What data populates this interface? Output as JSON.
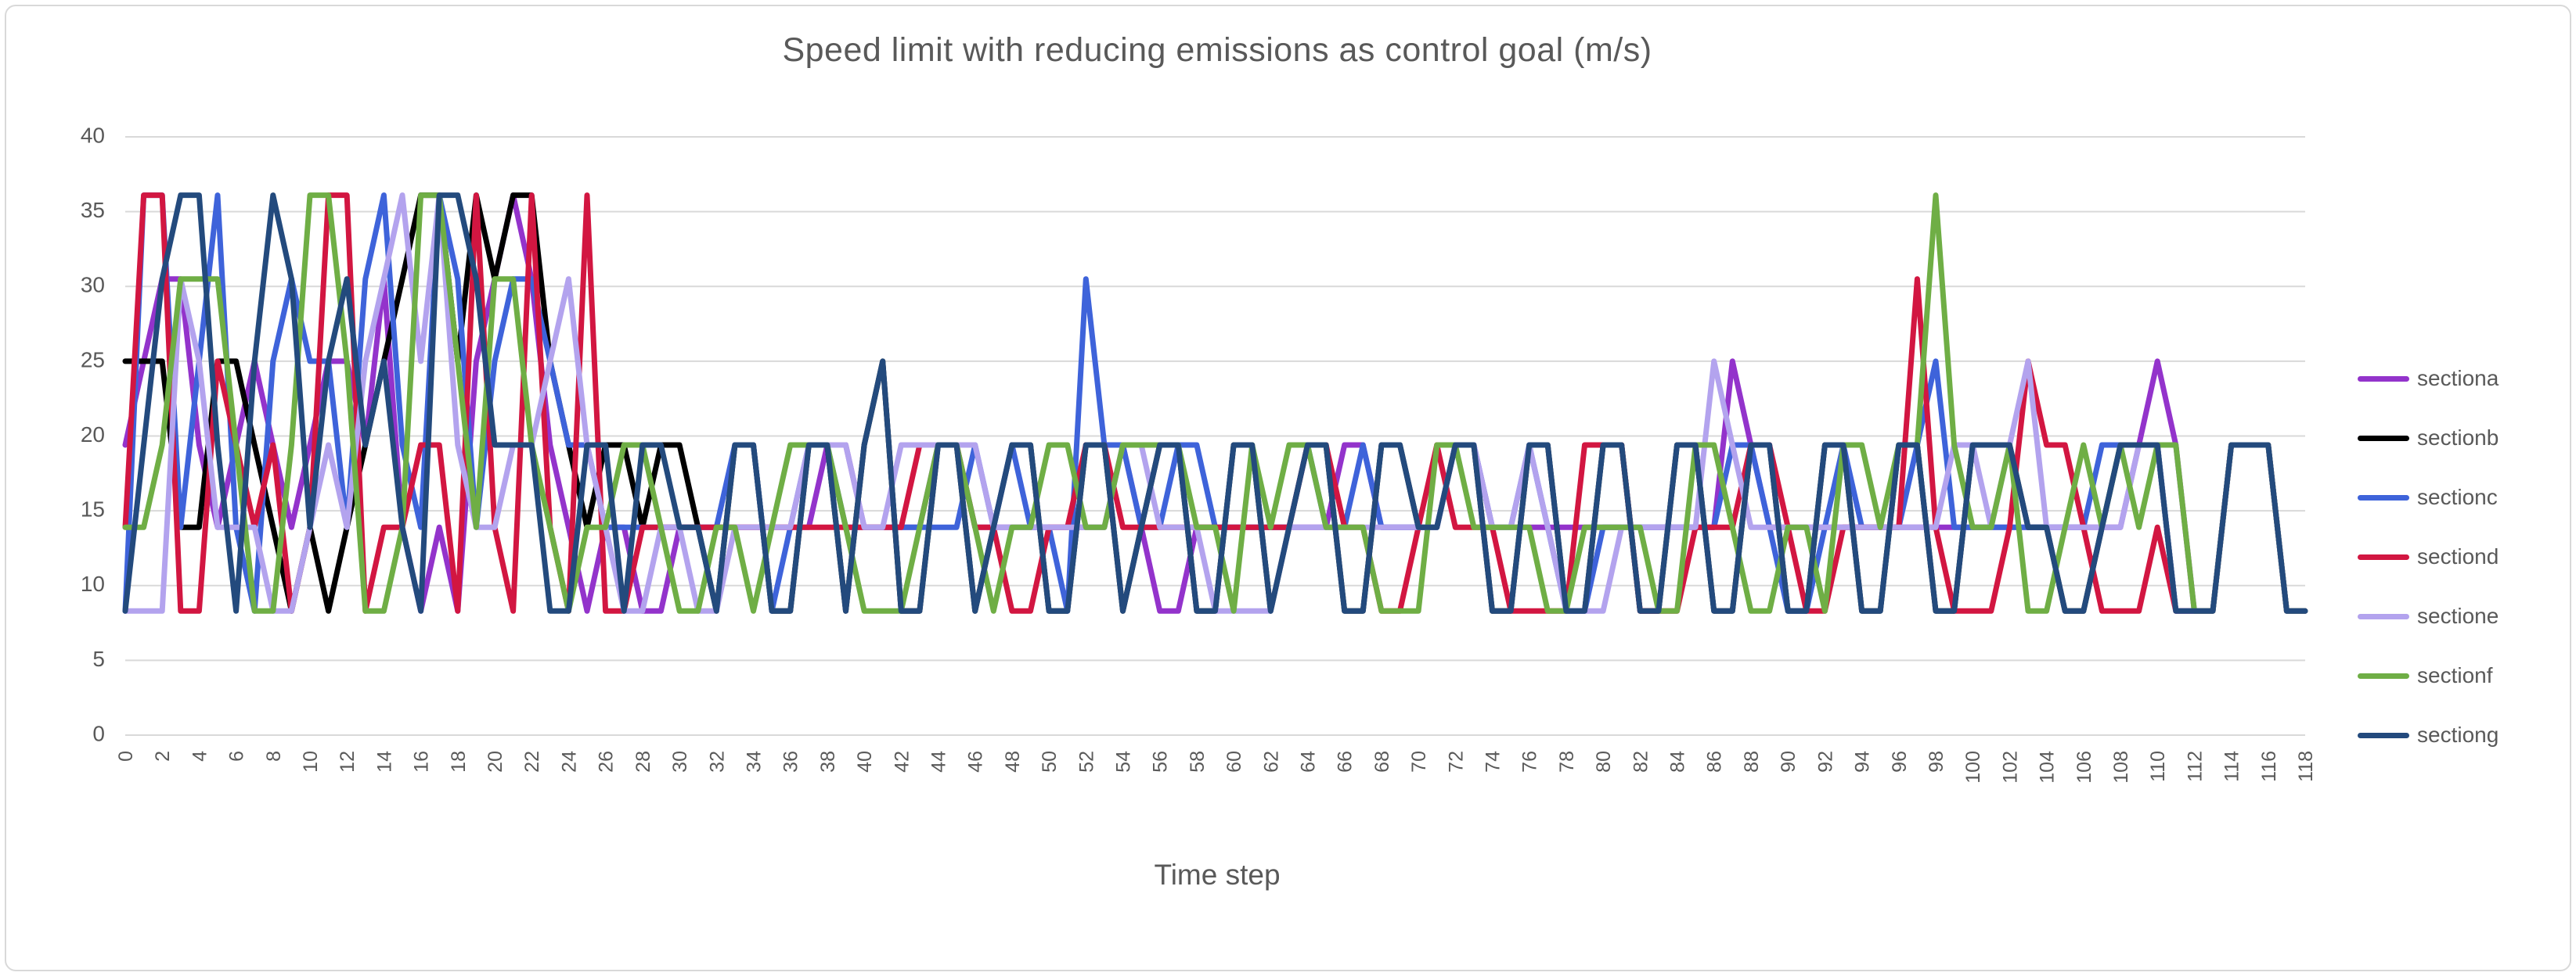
{
  "title": "Speed limit with reducing emissions as control goal (m/s)",
  "x_axis_title": "Time step",
  "colors": {
    "grid": "#d9d9d9",
    "axis_text": "#595959",
    "frame_border": "#d9d9d9",
    "background": "#ffffff"
  },
  "chart_data": {
    "type": "line",
    "title": "Speed limit with reducing emissions as control goal (m/s)",
    "xlabel": "Time step",
    "ylabel": "",
    "ylim": [
      0,
      40
    ],
    "grid": true,
    "legend_position": "right",
    "y_ticks": [
      0,
      5,
      10,
      15,
      20,
      25,
      30,
      35,
      40
    ],
    "x_ticks": [
      0,
      2,
      4,
      6,
      8,
      10,
      12,
      14,
      16,
      18,
      20,
      22,
      24,
      26,
      28,
      30,
      32,
      34,
      36,
      38,
      40,
      42,
      44,
      46,
      48,
      50,
      52,
      54,
      56,
      58,
      60,
      62,
      64,
      66,
      68,
      70,
      72,
      74,
      76,
      78,
      80,
      82,
      84,
      86,
      88,
      90,
      92,
      94,
      96,
      98,
      100,
      102,
      104,
      106,
      108,
      110,
      112,
      114,
      116,
      118
    ],
    "x_start": 0,
    "x_end": 118,
    "series": [
      {
        "name": "sectiona",
        "color": "#9333cb",
        "values": [
          19.4,
          25,
          30.5,
          30.5,
          19.4,
          13.9,
          19.4,
          25,
          19.4,
          13.9,
          19.4,
          25,
          25,
          19.4,
          30.5,
          13.9,
          8.3,
          13.9,
          8.3,
          25,
          30.5,
          36.1,
          30.5,
          19.4,
          13.9,
          8.3,
          13.9,
          13.9,
          8.3,
          8.3,
          13.9,
          13.9,
          13.9,
          13.9,
          13.9,
          13.9,
          13.9,
          13.9,
          19.4,
          19.4,
          13.9,
          13.9,
          13.9,
          13.9,
          19.4,
          19.4,
          13.9,
          13.9,
          13.9,
          13.9,
          13.9,
          13.9,
          13.9,
          13.9,
          19.4,
          13.9,
          8.3,
          8.3,
          13.9,
          13.9,
          13.9,
          13.9,
          13.9,
          13.9,
          13.9,
          13.9,
          19.4,
          19.4,
          13.9,
          13.9,
          13.9,
          13.9,
          19.4,
          19.4,
          13.9,
          13.9,
          13.9,
          13.9,
          13.9,
          13.9,
          13.9,
          13.9,
          13.9,
          13.9,
          13.9,
          13.9,
          13.9,
          25,
          19.4,
          13.9,
          13.9,
          13.9,
          13.9,
          13.9,
          13.9,
          13.9,
          13.9,
          13.9,
          13.9,
          13.9,
          13.9,
          13.9,
          13.9,
          13.9,
          13.9,
          13.9,
          13.9,
          13.9,
          13.9,
          19.4,
          25,
          19.4,
          8.3,
          8.3,
          19.4,
          19.4,
          19.4,
          8.3,
          8.3
        ]
      },
      {
        "name": "sectionb",
        "color": "#000000",
        "values": [
          25,
          25,
          25,
          13.9,
          13.9,
          25,
          25,
          19.4,
          13.9,
          8.3,
          13.9,
          8.3,
          13.9,
          19.4,
          25,
          30.5,
          36.1,
          36.1,
          25,
          36.1,
          30.5,
          36.1,
          36.1,
          25,
          19.4,
          13.9,
          19.4,
          19.4,
          13.9,
          19.4,
          19.4,
          13.9,
          8.3,
          19.4,
          19.4,
          8.3,
          8.3,
          19.4,
          19.4,
          8.3,
          19.4,
          25,
          8.3,
          8.3,
          19.4,
          19.4,
          8.3,
          13.9,
          19.4,
          19.4,
          8.3,
          8.3,
          19.4,
          19.4,
          8.3,
          13.9,
          19.4,
          19.4,
          8.3,
          8.3,
          19.4,
          19.4,
          8.3,
          13.9,
          19.4,
          19.4,
          8.3,
          8.3,
          19.4,
          19.4,
          13.9,
          13.9,
          19.4,
          19.4,
          8.3,
          8.3,
          19.4,
          19.4,
          8.3,
          8.3,
          19.4,
          19.4,
          8.3,
          8.3,
          19.4,
          19.4,
          8.3,
          8.3,
          19.4,
          19.4,
          8.3,
          8.3,
          19.4,
          19.4,
          8.3,
          8.3,
          19.4,
          19.4,
          8.3,
          8.3,
          19.4,
          19.4,
          19.4,
          13.9,
          13.9,
          8.3,
          8.3,
          13.9,
          19.4,
          19.4,
          19.4,
          8.3,
          8.3,
          8.3,
          19.4,
          19.4,
          19.4,
          8.3,
          8.3
        ]
      },
      {
        "name": "sectionc",
        "color": "#3e63da",
        "values": [
          8.3,
          36.1,
          36.1,
          13.9,
          25,
          36.1,
          13.9,
          8.3,
          25,
          30.5,
          25,
          25,
          13.9,
          30.5,
          36.1,
          19.4,
          13.9,
          36.1,
          30.5,
          13.9,
          25,
          30.5,
          30.5,
          25,
          19.4,
          19.4,
          13.9,
          13.9,
          13.9,
          13.9,
          13.9,
          13.9,
          13.9,
          19.4,
          19.4,
          8.3,
          13.9,
          19.4,
          19.4,
          13.9,
          13.9,
          13.9,
          13.9,
          13.9,
          13.9,
          13.9,
          19.4,
          13.9,
          19.4,
          13.9,
          13.9,
          8.3,
          30.5,
          19.4,
          19.4,
          13.9,
          13.9,
          19.4,
          19.4,
          13.9,
          13.9,
          13.9,
          13.9,
          13.9,
          19.4,
          13.9,
          13.9,
          19.4,
          13.9,
          13.9,
          13.9,
          13.9,
          19.4,
          19.4,
          13.9,
          13.9,
          19.4,
          13.9,
          8.3,
          8.3,
          13.9,
          13.9,
          13.9,
          13.9,
          13.9,
          13.9,
          13.9,
          19.4,
          19.4,
          13.9,
          8.3,
          8.3,
          13.9,
          19.4,
          13.9,
          13.9,
          13.9,
          19.4,
          25,
          13.9,
          13.9,
          13.9,
          13.9,
          13.9,
          13.9,
          13.9,
          13.9,
          19.4,
          19.4,
          19.4,
          19.4,
          8.3,
          8.3,
          8.3,
          19.4,
          19.4,
          19.4,
          8.3,
          8.3
        ]
      },
      {
        "name": "sectiond",
        "color": "#d21641",
        "values": [
          13.9,
          36.1,
          36.1,
          8.3,
          8.3,
          25,
          19.4,
          13.9,
          19.4,
          8.3,
          13.9,
          36.1,
          36.1,
          8.3,
          13.9,
          13.9,
          19.4,
          19.4,
          8.3,
          36.1,
          13.9,
          8.3,
          36.1,
          13.9,
          8.3,
          36.1,
          8.3,
          8.3,
          13.9,
          13.9,
          13.9,
          13.9,
          13.9,
          13.9,
          13.9,
          13.9,
          13.9,
          13.9,
          13.9,
          13.9,
          13.9,
          13.9,
          13.9,
          19.4,
          19.4,
          19.4,
          13.9,
          13.9,
          8.3,
          8.3,
          13.9,
          13.9,
          19.4,
          19.4,
          13.9,
          13.9,
          13.9,
          13.9,
          13.9,
          13.9,
          13.9,
          13.9,
          13.9,
          13.9,
          19.4,
          19.4,
          13.9,
          13.9,
          8.3,
          8.3,
          13.9,
          19.4,
          13.9,
          13.9,
          13.9,
          8.3,
          8.3,
          8.3,
          8.3,
          19.4,
          19.4,
          19.4,
          8.3,
          8.3,
          8.3,
          13.9,
          13.9,
          13.9,
          19.4,
          19.4,
          13.9,
          8.3,
          8.3,
          13.9,
          13.9,
          13.9,
          13.9,
          30.5,
          13.9,
          8.3,
          8.3,
          8.3,
          13.9,
          25,
          19.4,
          19.4,
          13.9,
          8.3,
          8.3,
          8.3,
          13.9,
          8.3,
          8.3,
          8.3,
          19.4,
          19.4,
          19.4,
          8.3,
          8.3
        ]
      },
      {
        "name": "sectione",
        "color": "#b3a3ee",
        "values": [
          8.3,
          8.3,
          8.3,
          30.5,
          25,
          13.9,
          13.9,
          13.9,
          8.3,
          8.3,
          13.9,
          19.4,
          13.9,
          25,
          30.5,
          36.1,
          25,
          36.1,
          19.4,
          13.9,
          13.9,
          19.4,
          19.4,
          25,
          30.5,
          19.4,
          13.9,
          8.3,
          8.3,
          13.9,
          13.9,
          8.3,
          8.3,
          13.9,
          13.9,
          13.9,
          13.9,
          19.4,
          19.4,
          19.4,
          13.9,
          13.9,
          19.4,
          19.4,
          19.4,
          19.4,
          19.4,
          13.9,
          13.9,
          13.9,
          13.9,
          13.9,
          13.9,
          13.9,
          19.4,
          19.4,
          13.9,
          13.9,
          13.9,
          8.3,
          8.3,
          8.3,
          8.3,
          13.9,
          13.9,
          13.9,
          13.9,
          13.9,
          13.9,
          13.9,
          13.9,
          13.9,
          19.4,
          19.4,
          13.9,
          13.9,
          19.4,
          13.9,
          8.3,
          8.3,
          8.3,
          13.9,
          13.9,
          13.9,
          13.9,
          13.9,
          25,
          19.4,
          13.9,
          13.9,
          13.9,
          13.9,
          13.9,
          13.9,
          13.9,
          13.9,
          13.9,
          13.9,
          13.9,
          19.4,
          19.4,
          13.9,
          19.4,
          25,
          13.9,
          13.9,
          13.9,
          13.9,
          13.9,
          19.4,
          19.4,
          8.3,
          8.3,
          8.3,
          19.4,
          19.4,
          19.4,
          8.3,
          8.3
        ]
      },
      {
        "name": "sectionf",
        "color": "#6fae45",
        "values": [
          13.9,
          13.9,
          19.4,
          30.5,
          30.5,
          30.5,
          19.4,
          8.3,
          8.3,
          19.4,
          36.1,
          36.1,
          25,
          8.3,
          8.3,
          13.9,
          36.1,
          36.1,
          25,
          13.9,
          30.5,
          30.5,
          19.4,
          13.9,
          8.3,
          13.9,
          13.9,
          19.4,
          19.4,
          13.9,
          8.3,
          8.3,
          13.9,
          13.9,
          8.3,
          13.9,
          19.4,
          19.4,
          19.4,
          13.9,
          8.3,
          8.3,
          8.3,
          13.9,
          19.4,
          19.4,
          13.9,
          8.3,
          13.9,
          13.9,
          19.4,
          19.4,
          13.9,
          13.9,
          19.4,
          19.4,
          19.4,
          19.4,
          13.9,
          13.9,
          8.3,
          19.4,
          13.9,
          19.4,
          19.4,
          13.9,
          13.9,
          13.9,
          8.3,
          8.3,
          8.3,
          19.4,
          19.4,
          13.9,
          13.9,
          13.9,
          13.9,
          8.3,
          8.3,
          13.9,
          13.9,
          13.9,
          13.9,
          8.3,
          8.3,
          19.4,
          19.4,
          13.9,
          8.3,
          8.3,
          13.9,
          13.9,
          8.3,
          19.4,
          19.4,
          13.9,
          19.4,
          19.4,
          36.1,
          19.4,
          13.9,
          13.9,
          19.4,
          8.3,
          8.3,
          13.9,
          19.4,
          13.9,
          19.4,
          13.9,
          19.4,
          19.4,
          8.3,
          8.3,
          19.4,
          19.4,
          19.4,
          8.3,
          8.3
        ]
      },
      {
        "name": "sectiong",
        "color": "#234a7d",
        "values": [
          8.3,
          19.4,
          30.5,
          36.1,
          36.1,
          19.4,
          8.3,
          25,
          36.1,
          30.5,
          13.9,
          25,
          30.5,
          19.4,
          25,
          13.9,
          8.3,
          36.1,
          36.1,
          30.5,
          19.4,
          19.4,
          19.4,
          8.3,
          8.3,
          19.4,
          19.4,
          8.3,
          19.4,
          19.4,
          13.9,
          13.9,
          8.3,
          19.4,
          19.4,
          8.3,
          8.3,
          19.4,
          19.4,
          8.3,
          19.4,
          25,
          8.3,
          8.3,
          19.4,
          19.4,
          8.3,
          13.9,
          19.4,
          19.4,
          8.3,
          8.3,
          19.4,
          19.4,
          8.3,
          13.9,
          19.4,
          19.4,
          8.3,
          8.3,
          19.4,
          19.4,
          8.3,
          13.9,
          19.4,
          19.4,
          8.3,
          8.3,
          19.4,
          19.4,
          13.9,
          13.9,
          19.4,
          19.4,
          8.3,
          8.3,
          19.4,
          19.4,
          8.3,
          8.3,
          19.4,
          19.4,
          8.3,
          8.3,
          19.4,
          19.4,
          8.3,
          8.3,
          19.4,
          19.4,
          8.3,
          8.3,
          19.4,
          19.4,
          8.3,
          8.3,
          19.4,
          19.4,
          8.3,
          8.3,
          19.4,
          19.4,
          19.4,
          13.9,
          13.9,
          8.3,
          8.3,
          13.9,
          19.4,
          19.4,
          19.4,
          8.3,
          8.3,
          8.3,
          19.4,
          19.4,
          19.4,
          8.3,
          8.3
        ]
      }
    ]
  }
}
